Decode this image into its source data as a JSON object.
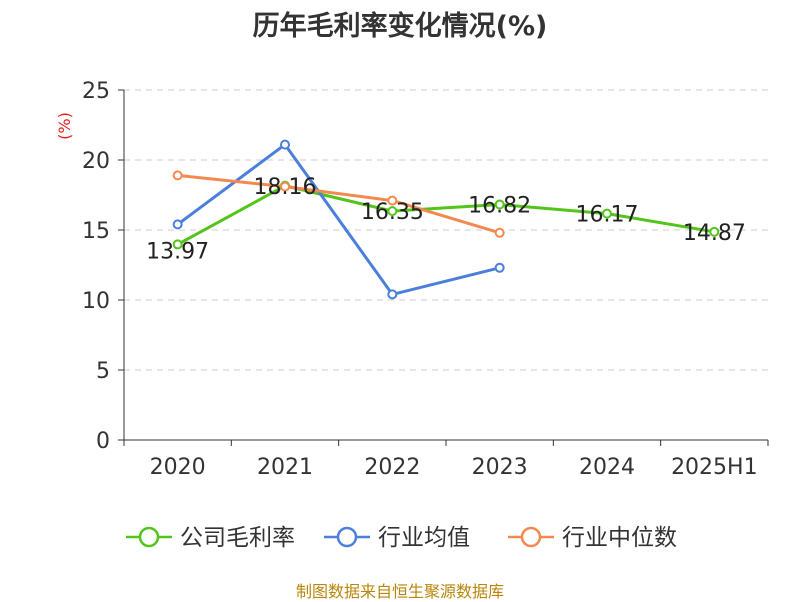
{
  "chart_data": {
    "type": "line",
    "title": "历年毛利率变化情况(%)",
    "ylabel": "(%)",
    "xlabel": "",
    "categories": [
      "2020",
      "2021",
      "2022",
      "2023",
      "2024",
      "2025H1"
    ],
    "ylim": [
      0,
      25
    ],
    "yticks": [
      0,
      5,
      10,
      15,
      20,
      25
    ],
    "grid": true,
    "legend_position": "bottom",
    "series": [
      {
        "name": "公司毛利率",
        "color": "#52c41a",
        "values": [
          13.97,
          18.16,
          16.35,
          16.82,
          16.17,
          14.87
        ],
        "labels": [
          "13.97",
          "18.16",
          "16.35",
          "16.82",
          "16.17",
          "14.87"
        ],
        "show_labels": true
      },
      {
        "name": "行业均值",
        "color": "#4a7fdb",
        "values": [
          15.4,
          21.1,
          10.4,
          12.3,
          null,
          null
        ],
        "show_labels": false
      },
      {
        "name": "行业中位数",
        "color": "#f4894f",
        "values": [
          18.9,
          18.1,
          17.1,
          14.8,
          null,
          null
        ],
        "show_labels": false
      }
    ]
  },
  "source_note": "制图数据来自恒生聚源数据库"
}
